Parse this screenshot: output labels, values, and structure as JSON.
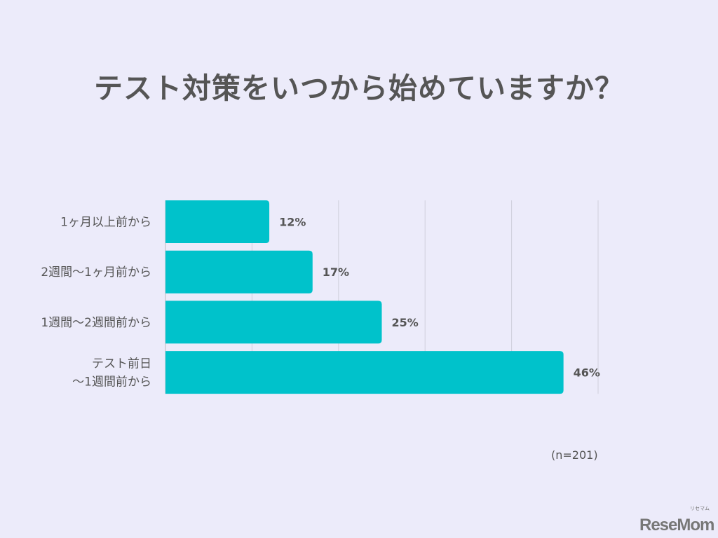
{
  "chart_data": {
    "type": "bar",
    "orientation": "horizontal",
    "title": "テスト対策をいつから始めていますか？",
    "categories": [
      [
        "1ヶ月以上前から"
      ],
      [
        "2週間〜1ヶ月前から"
      ],
      [
        "1週間〜2週間前から"
      ],
      [
        "テスト前日",
        "〜1週間前から"
      ]
    ],
    "values": [
      12,
      17,
      25,
      46
    ],
    "value_labels": [
      "12%",
      "17%",
      "25%",
      "46%"
    ],
    "xlim": [
      0,
      50
    ],
    "grid_step": 10,
    "grid": true,
    "xlabel": "",
    "ylabel": "",
    "note": "(n=201)",
    "bar_color": "#00C2CB"
  },
  "logo": {
    "text": "ReseMom",
    "sub": "リセマム"
  }
}
